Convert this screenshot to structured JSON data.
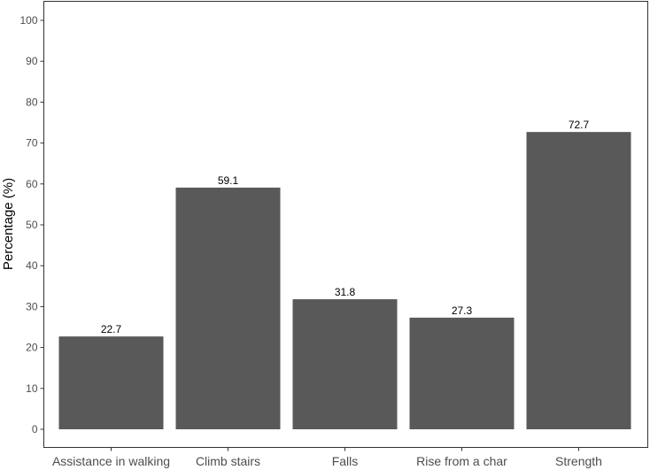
{
  "chart_data": {
    "type": "bar",
    "categories": [
      "Assistance in walking",
      "Climb stairs",
      "Falls",
      "Rise from a char",
      "Strength"
    ],
    "values": [
      22.7,
      59.1,
      31.8,
      27.3,
      72.7
    ],
    "data_labels": [
      "22.7",
      "59.1",
      "31.8",
      "27.3",
      "72.7"
    ],
    "ylabel": "Percentage (%)",
    "xlabel": "",
    "ylim": [
      0,
      100
    ],
    "yticks": [
      0,
      10,
      20,
      30,
      40,
      50,
      60,
      70,
      80,
      90,
      100
    ],
    "ytick_labels": [
      "0",
      "10",
      "20",
      "30",
      "40",
      "50",
      "60",
      "70",
      "80",
      "90",
      "100"
    ],
    "grid": false,
    "legend": "none",
    "colors": {
      "bar": "#595959",
      "panel_border": "#333333",
      "tick": "#333333"
    }
  }
}
